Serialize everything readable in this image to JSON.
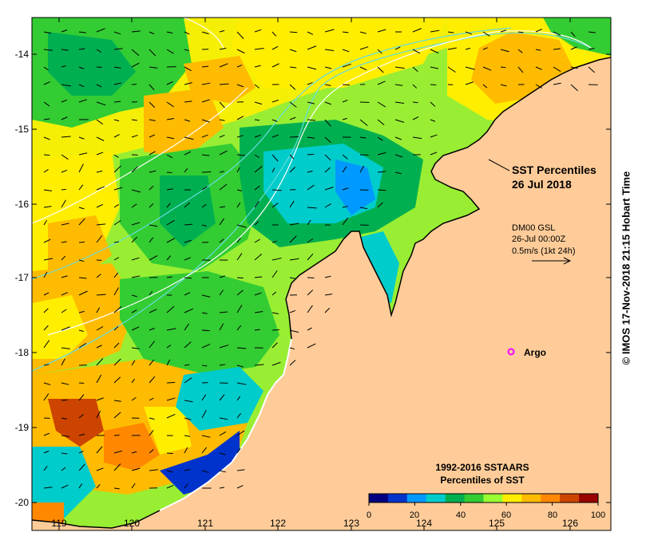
{
  "map": {
    "title_line1": "SST Percentiles",
    "title_line2": "26 Jul 2018",
    "current_info": {
      "line1": "DM00 GSL",
      "line2": "26-Jul 00:00Z",
      "line3": "0.5m/s (1kt 24h)"
    },
    "argo_label": "Argo",
    "argo_marker_color": "#ff00ff",
    "legend": {
      "title_line1": "1992-2016 SSTAARS",
      "title_line2": "Percentiles of SST",
      "colors": [
        "#000080",
        "#0033cc",
        "#0099ff",
        "#00cccc",
        "#00b050",
        "#33cc33",
        "#99ff33",
        "#ffee00",
        "#ffbb00",
        "#ff8800",
        "#cc4400",
        "#990000"
      ],
      "tick_labels": [
        "0",
        "20",
        "40",
        "60",
        "80",
        "100"
      ]
    },
    "y_axis_labels": [
      "-14",
      "-15",
      "-16",
      "-17",
      "-18",
      "-19",
      "-20"
    ],
    "x_axis_labels": [
      "119",
      "120",
      "121",
      "122",
      "123",
      "124",
      "125",
      "126"
    ],
    "land_color": "#ffcc99",
    "credit": "© IMOS 17-Nov-2018 21:15 Hobart Time"
  }
}
